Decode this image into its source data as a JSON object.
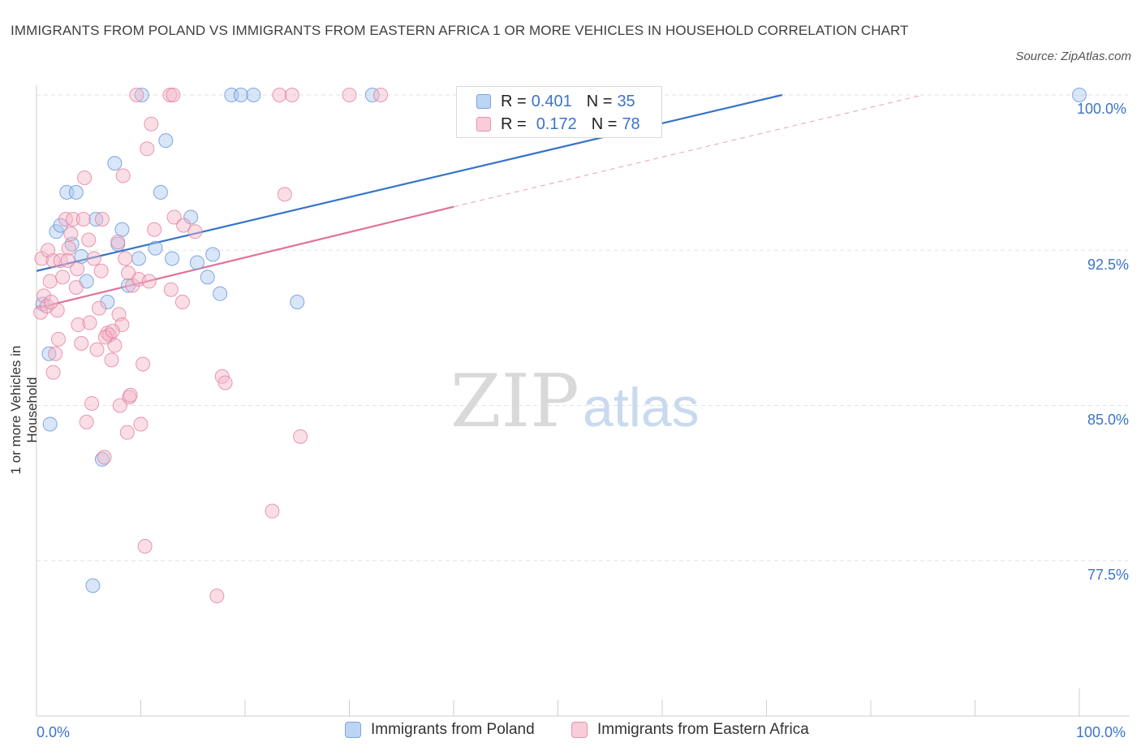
{
  "title": "IMMIGRANTS FROM POLAND VS IMMIGRANTS FROM EASTERN AFRICA 1 OR MORE VEHICLES IN HOUSEHOLD CORRELATION CHART",
  "source": "Source: ZipAtlas.com",
  "watermark": {
    "zip": "ZIP",
    "atlas": "atlas"
  },
  "legend": {
    "r_label": "R =",
    "n_label": "N =",
    "rows": [
      {
        "r": "0.401",
        "n": "35",
        "color": "#a8c8f0"
      },
      {
        "r": "0.172",
        "n": "78",
        "color": "#f5b5c8"
      }
    ]
  },
  "bottom_legend": [
    "Immigrants from Poland",
    "Immigrants from Eastern Africa"
  ],
  "axis": {
    "y_title": "1 or more Vehicles in Household",
    "x_min_label": "0.0%",
    "x_max_label": "100.0%",
    "y_ticks": [
      "100.0%",
      "92.5%",
      "85.0%",
      "77.5%"
    ]
  },
  "chart_data": {
    "type": "scatter",
    "title": "IMMIGRANTS FROM POLAND VS IMMIGRANTS FROM EASTERN AFRICA 1 OR MORE VEHICLES IN HOUSEHOLD CORRELATION CHART",
    "xlabel": "",
    "ylabel": "1 or more Vehicles in Household",
    "xlim": [
      0,
      100
    ],
    "ylim": [
      70.0,
      100.0
    ],
    "y_ticks": [
      100.0,
      92.5,
      85.0,
      77.5
    ],
    "series": [
      {
        "name": "Immigrants from Poland",
        "color": "#5b8ed6",
        "fill": "#a8c8f0",
        "r": 0.401,
        "n": 35,
        "trend": {
          "x": [
            0,
            71.5
          ],
          "y": [
            91.5,
            100.0
          ],
          "style": "solid"
        },
        "points": [
          [
            0.6,
            89.9
          ],
          [
            1.2,
            87.5
          ],
          [
            1.3,
            84.1
          ],
          [
            1.9,
            93.4
          ],
          [
            2.3,
            93.7
          ],
          [
            2.9,
            95.3
          ],
          [
            3.4,
            92.8
          ],
          [
            3.8,
            95.3
          ],
          [
            4.3,
            92.2
          ],
          [
            4.8,
            91.0
          ],
          [
            5.4,
            76.3
          ],
          [
            5.7,
            94.0
          ],
          [
            6.3,
            82.4
          ],
          [
            6.8,
            90.0
          ],
          [
            7.5,
            96.7
          ],
          [
            7.8,
            92.8
          ],
          [
            8.2,
            93.5
          ],
          [
            8.8,
            90.8
          ],
          [
            9.8,
            92.1
          ],
          [
            10.1,
            100.0
          ],
          [
            11.4,
            92.6
          ],
          [
            11.9,
            95.3
          ],
          [
            12.4,
            97.8
          ],
          [
            13.0,
            92.1
          ],
          [
            14.8,
            94.1
          ],
          [
            15.4,
            91.9
          ],
          [
            16.4,
            91.2
          ],
          [
            16.9,
            92.3
          ],
          [
            17.6,
            90.4
          ],
          [
            18.7,
            100.0
          ],
          [
            19.6,
            100.0
          ],
          [
            20.8,
            100.0
          ],
          [
            25.0,
            90.0
          ],
          [
            32.2,
            100.0
          ],
          [
            100.0,
            100.0
          ]
        ]
      },
      {
        "name": "Immigrants from Eastern Africa",
        "color": "#e07a9a",
        "fill": "#f5b5c8",
        "r": 0.172,
        "n": 78,
        "trend": {
          "x": [
            0,
            40
          ],
          "y": [
            89.7,
            94.6
          ],
          "style": "solid",
          "extension": {
            "x": [
              40,
              85
            ],
            "y": [
              94.6,
              100.0
            ],
            "style": "dashed"
          }
        },
        "points": [
          [
            0.4,
            89.5
          ],
          [
            0.5,
            92.1
          ],
          [
            0.7,
            90.3
          ],
          [
            1.0,
            89.8
          ],
          [
            1.1,
            92.5
          ],
          [
            1.3,
            91.0
          ],
          [
            1.6,
            92.0
          ],
          [
            1.8,
            87.5
          ],
          [
            1.6,
            86.6
          ],
          [
            2.0,
            89.6
          ],
          [
            2.3,
            92.0
          ],
          [
            2.5,
            91.2
          ],
          [
            2.8,
            94.0
          ],
          [
            3.1,
            92.6
          ],
          [
            3.3,
            93.3
          ],
          [
            3.5,
            94.0
          ],
          [
            3.8,
            90.7
          ],
          [
            3.9,
            91.6
          ],
          [
            4.0,
            88.9
          ],
          [
            4.3,
            88.0
          ],
          [
            4.5,
            94.0
          ],
          [
            4.6,
            96.0
          ],
          [
            4.8,
            84.2
          ],
          [
            5.0,
            93.0
          ],
          [
            5.1,
            89.0
          ],
          [
            5.3,
            85.1
          ],
          [
            5.5,
            92.1
          ],
          [
            5.8,
            87.7
          ],
          [
            6.0,
            89.7
          ],
          [
            6.2,
            91.5
          ],
          [
            6.3,
            94.0
          ],
          [
            6.5,
            82.5
          ],
          [
            6.8,
            88.5
          ],
          [
            7.0,
            88.4
          ],
          [
            7.2,
            87.2
          ],
          [
            7.5,
            87.9
          ],
          [
            7.8,
            92.9
          ],
          [
            7.9,
            89.4
          ],
          [
            8.0,
            85.0
          ],
          [
            8.2,
            88.9
          ],
          [
            8.3,
            96.1
          ],
          [
            8.5,
            92.1
          ],
          [
            8.7,
            83.7
          ],
          [
            8.9,
            85.4
          ],
          [
            9.0,
            85.5
          ],
          [
            9.2,
            90.8
          ],
          [
            9.6,
            100.0
          ],
          [
            9.8,
            91.1
          ],
          [
            10.0,
            84.1
          ],
          [
            10.2,
            87.0
          ],
          [
            10.4,
            78.2
          ],
          [
            10.6,
            97.4
          ],
          [
            10.8,
            91.0
          ],
          [
            11.0,
            98.6
          ],
          [
            11.3,
            93.5
          ],
          [
            12.8,
            100.0
          ],
          [
            12.9,
            90.6
          ],
          [
            13.1,
            100.0
          ],
          [
            13.2,
            94.1
          ],
          [
            14.0,
            90.0
          ],
          [
            14.1,
            93.7
          ],
          [
            15.2,
            93.4
          ],
          [
            17.3,
            75.8
          ],
          [
            17.8,
            86.4
          ],
          [
            18.1,
            86.1
          ],
          [
            22.6,
            79.9
          ],
          [
            23.3,
            100.0
          ],
          [
            23.8,
            95.2
          ],
          [
            24.5,
            100.0
          ],
          [
            25.3,
            83.5
          ],
          [
            30.0,
            100.0
          ],
          [
            33.0,
            100.0
          ],
          [
            3.0,
            92.0
          ],
          [
            6.6,
            88.3
          ],
          [
            1.4,
            90.0
          ],
          [
            2.1,
            88.2
          ],
          [
            7.3,
            88.6
          ],
          [
            8.8,
            91.4
          ]
        ]
      }
    ]
  }
}
